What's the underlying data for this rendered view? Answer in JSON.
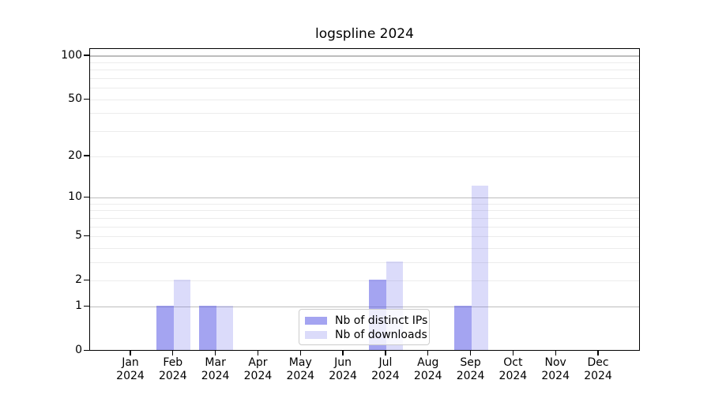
{
  "chart_data": {
    "type": "bar",
    "title": "logspline 2024",
    "categories": [
      "Jan 2024",
      "Feb 2024",
      "Mar 2024",
      "Apr 2024",
      "May 2024",
      "Jun 2024",
      "Jul 2024",
      "Aug 2024",
      "Sep 2024",
      "Oct 2024",
      "Nov 2024",
      "Dec 2024"
    ],
    "series": [
      {
        "name": "Nb of distinct IPs",
        "fill": "rgba(90,90,230,0.55)",
        "legend_color": "#a4a4f1",
        "values": [
          0,
          1,
          1,
          0,
          0,
          0,
          2,
          0,
          1,
          0,
          0,
          0
        ]
      },
      {
        "name": "Nb of downloads",
        "fill": "rgba(90,90,230,0.22)",
        "legend_color": "#dbdbf9",
        "values": [
          0,
          2,
          1,
          0,
          0,
          0,
          3,
          0,
          12,
          0,
          0,
          0
        ]
      }
    ],
    "y_scale": "log1p",
    "y_ticks": [
      0,
      1,
      2,
      5,
      10,
      20,
      50,
      100
    ],
    "y_major_gridlines": [
      1,
      10,
      100
    ],
    "y_minor_gridlines": [
      2,
      3,
      4,
      5,
      6,
      7,
      8,
      9,
      20,
      30,
      40,
      50,
      60,
      70,
      80,
      90
    ],
    "ylim": [
      0,
      112
    ],
    "grid": true,
    "legend_position": "lower center",
    "colors": {
      "major_grid": "#bdbdbd",
      "minor_grid": "#ececec",
      "spine": "#000000"
    }
  }
}
